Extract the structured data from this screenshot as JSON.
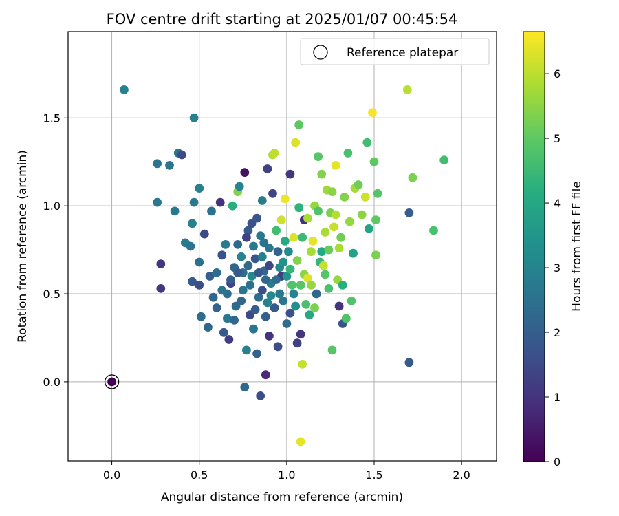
{
  "chart_data": {
    "type": "scatter",
    "title": "FOV centre drift starting at 2025/01/07 00:45:54",
    "xlabel": "Angular distance from reference (arcmin)",
    "ylabel": "Rotation from reference (arcmin)",
    "xlim": [
      -0.25,
      2.2
    ],
    "ylim": [
      -0.45,
      1.99
    ],
    "x_ticks": [
      0.0,
      0.5,
      1.0,
      1.5,
      2.0
    ],
    "x_tick_labels": [
      "0.0",
      "0.5",
      "1.0",
      "1.5",
      "2.0"
    ],
    "y_ticks": [
      0.0,
      0.5,
      1.0,
      1.5
    ],
    "y_tick_labels": [
      "0.0",
      "0.5",
      "1.0",
      "1.5"
    ],
    "grid": true,
    "legend": {
      "position": "top-right",
      "entries": [
        {
          "label": "Reference platepar",
          "marker": "open-circle",
          "x": 0.0,
          "y": 0.0
        }
      ]
    },
    "colorbar": {
      "label": "Hours from first FF file",
      "range": [
        0,
        6.65
      ],
      "ticks": [
        0,
        1,
        2,
        3,
        4,
        5,
        6
      ],
      "tick_labels": [
        "0",
        "1",
        "2",
        "3",
        "4",
        "5",
        "6"
      ],
      "colormap": "viridis"
    },
    "points": [
      [
        0.0,
        0.0,
        0.0
      ],
      [
        0.07,
        1.66,
        2.9
      ],
      [
        0.47,
        1.5,
        2.9
      ],
      [
        0.26,
        1.24,
        2.6
      ],
      [
        0.33,
        1.23,
        2.6
      ],
      [
        0.38,
        1.3,
        2.6
      ],
      [
        0.4,
        1.29,
        1.5
      ],
      [
        0.26,
        1.02,
        2.7
      ],
      [
        0.36,
        0.97,
        2.7
      ],
      [
        0.47,
        1.02,
        2.7
      ],
      [
        0.5,
        1.1,
        2.9
      ],
      [
        0.46,
        0.9,
        2.9
      ],
      [
        0.42,
        0.79,
        2.8
      ],
      [
        0.45,
        0.77,
        2.6
      ],
      [
        0.28,
        0.67,
        1.1
      ],
      [
        0.28,
        0.53,
        1.1
      ],
      [
        0.46,
        0.57,
        1.9
      ],
      [
        0.5,
        0.68,
        2.5
      ],
      [
        0.51,
        0.37,
        2.4
      ],
      [
        0.5,
        0.55,
        1.6
      ],
      [
        0.53,
        0.84,
        1.5
      ],
      [
        0.56,
        0.6,
        2.0
      ],
      [
        0.57,
        0.97,
        2.5
      ],
      [
        0.58,
        0.48,
        2.2
      ],
      [
        0.55,
        0.31,
        2.3
      ],
      [
        0.6,
        0.42,
        2.1
      ],
      [
        0.62,
        1.02,
        1.0
      ],
      [
        0.63,
        0.72,
        1.7
      ],
      [
        0.64,
        0.28,
        1.9
      ],
      [
        0.66,
        0.5,
        2.4
      ],
      [
        0.67,
        0.24,
        1.2
      ],
      [
        0.68,
        0.56,
        1.4
      ],
      [
        0.69,
        1.0,
        4.2
      ],
      [
        0.7,
        0.65,
        2.2
      ],
      [
        0.72,
        0.78,
        2.3
      ],
      [
        0.72,
        1.08,
        5.4
      ],
      [
        0.73,
        1.11,
        3.0
      ],
      [
        0.74,
        0.46,
        2.2
      ],
      [
        0.75,
        0.62,
        2.4
      ],
      [
        0.76,
        1.19,
        0.3
      ],
      [
        0.76,
        -0.03,
        2.3
      ],
      [
        0.77,
        0.18,
        2.9
      ],
      [
        0.78,
        0.86,
        1.9
      ],
      [
        0.79,
        0.55,
        2.5
      ],
      [
        0.8,
        0.9,
        1.7
      ],
      [
        0.81,
        0.3,
        2.6
      ],
      [
        0.82,
        0.7,
        1.8
      ],
      [
        0.83,
        0.16,
        2.1
      ],
      [
        0.84,
        0.48,
        2.4
      ],
      [
        0.85,
        -0.08,
        1.6
      ],
      [
        0.85,
        0.83,
        2.7
      ],
      [
        0.86,
        1.03,
        2.8
      ],
      [
        0.87,
        0.63,
        2.2
      ],
      [
        0.88,
        0.37,
        2.0
      ],
      [
        0.88,
        0.04,
        0.8
      ],
      [
        0.89,
        1.21,
        1.3
      ],
      [
        0.9,
        0.26,
        1.0
      ],
      [
        0.9,
        0.76,
        2.6
      ],
      [
        0.91,
        0.56,
        2.8
      ],
      [
        0.92,
        1.07,
        1.4
      ],
      [
        0.92,
        1.29,
        5.9
      ],
      [
        0.93,
        1.3,
        6.0
      ],
      [
        0.94,
        0.86,
        4.6
      ],
      [
        0.95,
        0.2,
        1.6
      ],
      [
        0.96,
        0.65,
        3.1
      ],
      [
        0.97,
        0.92,
        6.2
      ],
      [
        0.98,
        0.46,
        2.6
      ],
      [
        0.99,
        1.04,
        6.5
      ],
      [
        1.0,
        0.33,
        2.4
      ],
      [
        1.01,
        0.74,
        3.2
      ],
      [
        1.02,
        1.18,
        1.1
      ],
      [
        1.03,
        0.55,
        4.8
      ],
      [
        1.04,
        0.82,
        6.3
      ],
      [
        1.05,
        1.36,
        6.3
      ],
      [
        1.06,
        0.22,
        1.3
      ],
      [
        1.07,
        1.46,
        5.0
      ],
      [
        1.08,
        0.27,
        1.1
      ],
      [
        1.08,
        -0.34,
        6.4
      ],
      [
        1.09,
        0.1,
        6.1
      ],
      [
        1.1,
        0.61,
        5.5
      ],
      [
        1.1,
        0.92,
        0.9
      ],
      [
        1.11,
        0.44,
        4.7
      ],
      [
        1.12,
        0.59,
        6.3
      ],
      [
        1.13,
        0.38,
        4.0
      ],
      [
        1.14,
        0.74,
        5.8
      ],
      [
        1.15,
        0.8,
        6.4
      ],
      [
        1.16,
        1.0,
        5.6
      ],
      [
        1.17,
        0.5,
        2.2
      ],
      [
        1.18,
        1.28,
        4.9
      ],
      [
        1.19,
        0.68,
        4.4
      ],
      [
        1.2,
        1.18,
        5.4
      ],
      [
        1.21,
        0.66,
        6.1
      ],
      [
        1.22,
        0.85,
        5.8
      ],
      [
        1.23,
        1.09,
        5.7
      ],
      [
        1.24,
        0.53,
        4.7
      ],
      [
        1.25,
        0.96,
        5.3
      ],
      [
        1.26,
        0.18,
        4.9
      ],
      [
        1.27,
        0.88,
        6.1
      ],
      [
        1.28,
        1.23,
        6.4
      ],
      [
        1.29,
        0.58,
        5.6
      ],
      [
        1.3,
        0.43,
        1.0
      ],
      [
        1.31,
        0.82,
        5.2
      ],
      [
        1.32,
        0.33,
        1.8
      ],
      [
        1.33,
        1.05,
        5.4
      ],
      [
        1.34,
        0.36,
        4.8
      ],
      [
        1.35,
        1.3,
        4.7
      ],
      [
        1.36,
        0.91,
        5.6
      ],
      [
        1.37,
        0.46,
        4.8
      ],
      [
        1.38,
        0.73,
        3.8
      ],
      [
        1.39,
        1.1,
        5.8
      ],
      [
        1.41,
        1.12,
        5.2
      ],
      [
        1.43,
        0.95,
        5.5
      ],
      [
        1.45,
        1.05,
        6.2
      ],
      [
        1.46,
        1.36,
        4.6
      ],
      [
        1.47,
        0.87,
        3.9
      ],
      [
        1.49,
        1.53,
        6.6
      ],
      [
        1.5,
        1.25,
        5.0
      ],
      [
        1.51,
        0.92,
        5.0
      ],
      [
        1.51,
        0.72,
        5.3
      ],
      [
        1.52,
        1.07,
        4.9
      ],
      [
        1.69,
        1.66,
        6.0
      ],
      [
        1.7,
        0.96,
        2.0
      ],
      [
        1.7,
        0.11,
        1.9
      ],
      [
        1.72,
        1.16,
        5.3
      ],
      [
        1.84,
        0.86,
        4.7
      ],
      [
        1.9,
        1.26,
        4.6
      ],
      [
        0.66,
        0.36,
        2.7
      ],
      [
        0.71,
        0.43,
        2.3
      ],
      [
        0.74,
        0.71,
        3.0
      ],
      [
        0.77,
        0.82,
        1.3
      ],
      [
        0.79,
        0.38,
        1.5
      ],
      [
        0.8,
        0.6,
        3.1
      ],
      [
        0.82,
        0.41,
        2.0
      ],
      [
        0.83,
        0.93,
        1.8
      ],
      [
        0.86,
        0.52,
        1.6
      ],
      [
        0.87,
        0.79,
        2.5
      ],
      [
        0.89,
        0.45,
        2.9
      ],
      [
        0.9,
        0.66,
        1.4
      ],
      [
        0.93,
        0.42,
        1.9
      ],
      [
        0.95,
        0.74,
        2.1
      ],
      [
        0.97,
        0.6,
        1.2
      ],
      [
        0.99,
        0.8,
        4.0
      ],
      [
        1.02,
        0.39,
        1.7
      ],
      [
        1.04,
        0.5,
        3.0
      ],
      [
        1.06,
        0.69,
        5.4
      ],
      [
        1.07,
        0.99,
        4.3
      ],
      [
        1.09,
        0.82,
        4.5
      ],
      [
        1.12,
        0.93,
        5.8
      ],
      [
        1.14,
        0.55,
        5.6
      ],
      [
        1.16,
        0.42,
        5.3
      ],
      [
        1.18,
        0.97,
        4.8
      ],
      [
        1.2,
        0.74,
        4.0
      ],
      [
        1.22,
        0.61,
        4.9
      ],
      [
        1.24,
        0.75,
        5.1
      ],
      [
        1.26,
        1.08,
        5.5
      ],
      [
        1.28,
        0.95,
        5.9
      ],
      [
        1.3,
        0.76,
        5.8
      ],
      [
        1.32,
        0.55,
        4.2
      ],
      [
        0.6,
        0.62,
        2.4
      ],
      [
        0.63,
        0.52,
        2.6
      ],
      [
        0.65,
        0.78,
        2.8
      ],
      [
        0.68,
        0.58,
        2.0
      ],
      [
        0.7,
        0.35,
        2.2
      ],
      [
        0.72,
        0.62,
        1.9
      ],
      [
        0.75,
        0.52,
        2.6
      ],
      [
        0.78,
        0.66,
        2.3
      ],
      [
        0.81,
        0.77,
        2.7
      ],
      [
        0.84,
        0.62,
        1.9
      ],
      [
        0.86,
        0.71,
        2.9
      ],
      [
        0.88,
        0.58,
        2.2
      ],
      [
        0.91,
        0.49,
        3.1
      ],
      [
        0.94,
        0.58,
        2.4
      ],
      [
        0.96,
        0.5,
        2.7
      ],
      [
        0.98,
        0.68,
        3.4
      ],
      [
        1.0,
        0.6,
        3.5
      ],
      [
        1.02,
        0.64,
        4.4
      ],
      [
        1.05,
        0.43,
        3.3
      ],
      [
        1.08,
        0.55,
        4.9
      ]
    ]
  }
}
